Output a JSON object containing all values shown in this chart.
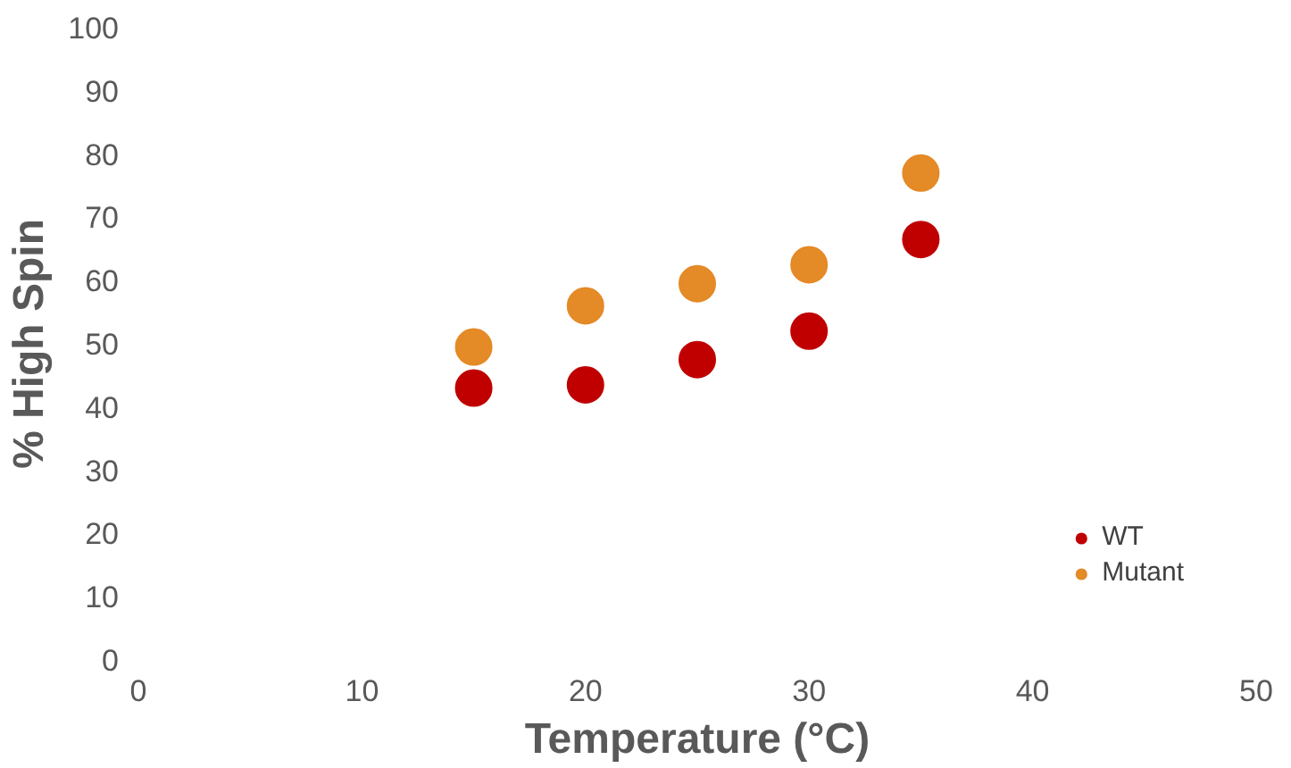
{
  "chart_data": {
    "type": "scatter",
    "xlabel": "Temperature (°C)",
    "ylabel": "% High Spin",
    "x": [
      15,
      20,
      25,
      30,
      35
    ],
    "series": [
      {
        "name": "WT",
        "color": "#c00000",
        "values": [
          43,
          43.5,
          47.5,
          52,
          66.5
        ]
      },
      {
        "name": "Mutant",
        "color": "#e48a26",
        "values": [
          49.5,
          56,
          59.5,
          62.5,
          77
        ]
      }
    ],
    "xlim": [
      0,
      50
    ],
    "xticks": [
      0,
      10,
      20,
      30,
      40,
      50
    ],
    "ylim": [
      0,
      100
    ],
    "yticks": [
      0,
      10,
      20,
      30,
      40,
      50,
      60,
      70,
      80,
      90,
      100
    ],
    "grid": false,
    "legend": "bottom right",
    "marker": "circle"
  }
}
